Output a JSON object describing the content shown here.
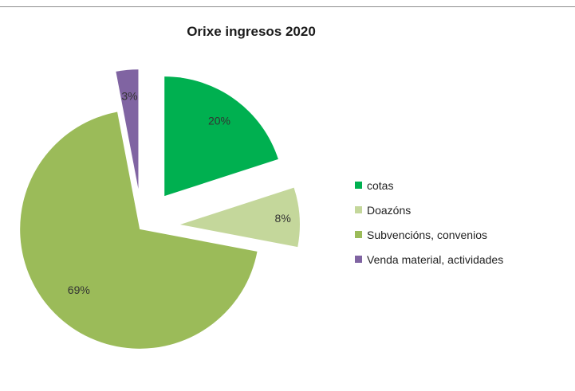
{
  "chart_data": {
    "type": "pie",
    "title": "Orixe ingresos 2020",
    "slices": [
      {
        "label": "cotas",
        "value": 20,
        "value_label": "20%",
        "color": "#00b050"
      },
      {
        "label": "Doazóns",
        "value": 8,
        "value_label": "8%",
        "color": "#c4d79b"
      },
      {
        "label": "Subvencións, convenios",
        "value": 69,
        "value_label": "69%",
        "color": "#9bbb59"
      },
      {
        "label": "Venda material, actividades",
        "value": 3,
        "value_label": "3%",
        "color": "#8064a2"
      }
    ],
    "exploded": true,
    "legend_position": "right"
  }
}
